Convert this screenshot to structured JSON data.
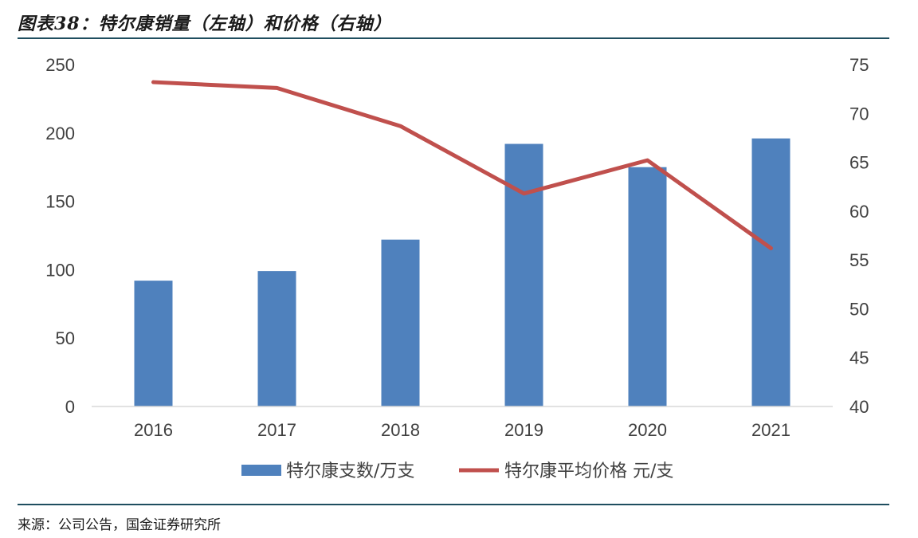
{
  "header": {
    "title": "图表38：特尔康销量（左轴）和价格（右轴）"
  },
  "footer": {
    "source": "来源：公司公告，国金证券研究所"
  },
  "chart_data": {
    "type": "bar",
    "title": "图表38：特尔康销量（左轴）和价格（右轴）",
    "categories": [
      "2016",
      "2017",
      "2018",
      "2019",
      "2020",
      "2021"
    ],
    "series": [
      {
        "name": "特尔康支数/万支",
        "type": "bar",
        "axis": "left",
        "values": [
          92,
          99,
          122,
          192,
          175,
          196
        ],
        "color": "#4f81bd"
      },
      {
        "name": "特尔康平均价格 元/支",
        "type": "line",
        "axis": "right",
        "values": [
          73.2,
          72.6,
          68.7,
          61.8,
          65.2,
          56.2
        ],
        "color": "#c0504d"
      }
    ],
    "y_left": {
      "ylim": [
        0,
        250
      ],
      "ticks": [
        "0",
        "50",
        "100",
        "150",
        "200",
        "250"
      ]
    },
    "y_right": {
      "ylim": [
        40,
        75
      ],
      "ticks": [
        "40",
        "45",
        "50",
        "55",
        "60",
        "65",
        "70",
        "75"
      ]
    },
    "legend_position": "bottom",
    "grid": false
  }
}
